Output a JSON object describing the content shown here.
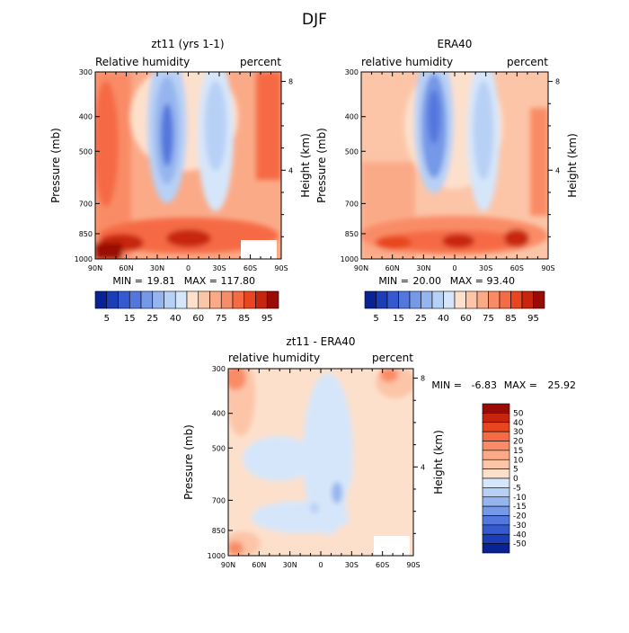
{
  "figure": {
    "title": "DJF",
    "colors": {
      "warm": [
        "#FDE0CC",
        "#FCC5A8",
        "#FBAA88",
        "#F98C66",
        "#F56B45",
        "#E9461F",
        "#C8250E",
        "#9A0B06"
      ],
      "cool": [
        "#D6E6FA",
        "#B7D0F5",
        "#96B5EF",
        "#7598E7",
        "#5477DD",
        "#3559CE",
        "#1B3DB6",
        "#0A2394"
      ]
    }
  },
  "chart_data": [
    {
      "type": "contour",
      "name": "zt11",
      "title": "zt11 (yrs 1-1)",
      "left_label": "Relative humidity",
      "right_label": "percent",
      "xlabel": "",
      "ylabel": "Pressure (mb)",
      "y2label": "Height (km)",
      "x_ticks": [
        "90N",
        "60N",
        "30N",
        "0",
        "30S",
        "60S",
        "90S"
      ],
      "y_ticks": [
        "300",
        "400",
        "500",
        "700",
        "850",
        "1000"
      ],
      "y_tick_values": [
        300,
        400,
        500,
        700,
        850,
        1000
      ],
      "y2_ticks": [
        "8",
        "4"
      ],
      "y2_tick_values": [
        8,
        4
      ],
      "ylim": [
        300,
        1000
      ],
      "xlim": [
        90,
        -90
      ],
      "min_label": "MIN =",
      "min_value": "19.81",
      "max_label": "MAX =",
      "max_value": "117.80",
      "data_min": 19.81,
      "data_max": 117.8,
      "colorbar_labels": [
        "5",
        "15",
        "25",
        "40",
        "60",
        "75",
        "85",
        "95"
      ]
    },
    {
      "type": "contour",
      "name": "era40",
      "title": "ERA40",
      "left_label": "relative humidity",
      "right_label": "percent",
      "xlabel": "",
      "ylabel": "Pressure (mb)",
      "y2label": "Height (km)",
      "x_ticks": [
        "90N",
        "60N",
        "30N",
        "0",
        "30S",
        "60S",
        "90S"
      ],
      "y_ticks": [
        "300",
        "400",
        "500",
        "700",
        "850",
        "1000"
      ],
      "y_tick_values": [
        300,
        400,
        500,
        700,
        850,
        1000
      ],
      "y2_ticks": [
        "8",
        "4"
      ],
      "y2_tick_values": [
        8,
        4
      ],
      "ylim": [
        300,
        1000
      ],
      "xlim": [
        90,
        -90
      ],
      "min_label": "MIN =",
      "min_value": "20.00",
      "max_label": "MAX =",
      "max_value": "93.40",
      "data_min": 20.0,
      "data_max": 93.4,
      "colorbar_labels": [
        "5",
        "15",
        "25",
        "40",
        "60",
        "75",
        "85",
        "95"
      ]
    },
    {
      "type": "contour",
      "name": "difference",
      "title": "zt11 - ERA40",
      "left_label": "relative humidity",
      "right_label": "percent",
      "xlabel": "",
      "ylabel": "Pressure (mb)",
      "y2label": "Height (km)",
      "x_ticks": [
        "90N",
        "60N",
        "30N",
        "0",
        "30S",
        "60S",
        "90S"
      ],
      "y_ticks": [
        "300",
        "400",
        "500",
        "700",
        "850",
        "1000"
      ],
      "y_tick_values": [
        300,
        400,
        500,
        700,
        850,
        1000
      ],
      "y2_ticks": [
        "8",
        "4"
      ],
      "y2_tick_values": [
        8,
        4
      ],
      "ylim": [
        300,
        1000
      ],
      "xlim": [
        90,
        -90
      ],
      "min_label": "MIN =",
      "min_value": "-6.83",
      "max_label": "MAX =",
      "max_value": "25.92",
      "data_min": -6.83,
      "data_max": 25.92,
      "colorbar_labels": [
        "50",
        "40",
        "30",
        "20",
        "15",
        "10",
        "5",
        "0",
        "-5",
        "-10",
        "-15",
        "-20",
        "-30",
        "-40",
        "-50"
      ]
    }
  ]
}
